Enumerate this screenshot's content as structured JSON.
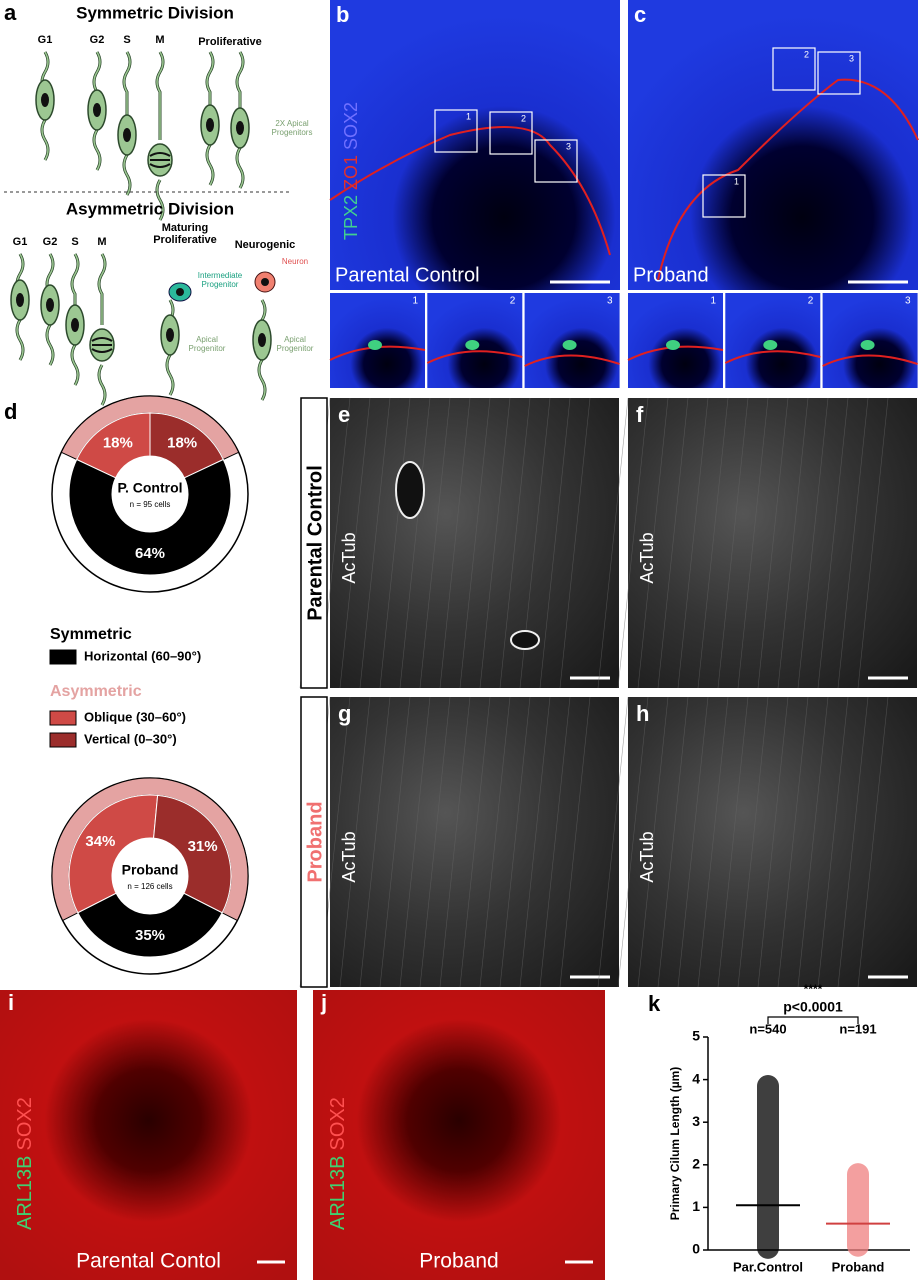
{
  "panel_a": {
    "label": "a",
    "symmetric": {
      "title": "Symmetric Division",
      "phases": [
        "G1",
        "G2",
        "S",
        "M"
      ],
      "outcome": "Proliferative",
      "result": "2X Apical Progenitors"
    },
    "asymmetric": {
      "title": "Asymmetric Division",
      "phases": [
        "G1",
        "G2",
        "S",
        "M"
      ],
      "outcomes": [
        "Maturing Proliferative",
        "Neurogenic"
      ],
      "cell_labels": [
        "Intermediate Progenitor",
        "Apical Progenitor",
        "Neuron",
        "Apical Progenitor"
      ]
    }
  },
  "panel_b": {
    "label": "b",
    "stains": [
      "TPX2",
      "ZO1",
      "SOX2"
    ],
    "caption": "Parental Control",
    "boxes": [
      "1",
      "2",
      "3"
    ],
    "insets": [
      "1",
      "2",
      "3"
    ]
  },
  "panel_c": {
    "label": "c",
    "caption": "Proband",
    "boxes": [
      "1",
      "2",
      "3"
    ],
    "insets": [
      "1",
      "2",
      "3"
    ]
  },
  "panel_d": {
    "label": "d",
    "groups": [
      "Symmetric",
      "Asymmetric"
    ]
  },
  "panel_e": {
    "label": "e",
    "stain": "AcTub"
  },
  "panel_f": {
    "label": "f",
    "stain": "AcTub"
  },
  "panel_g": {
    "label": "g",
    "stain": "AcTub"
  },
  "panel_h": {
    "label": "h",
    "stain": "AcTub"
  },
  "row_labels": [
    "Parental Control",
    "Proband"
  ],
  "panel_i": {
    "label": "i",
    "stains": [
      "ARL13B",
      "SOX2"
    ],
    "caption": "Parental Contol"
  },
  "panel_j": {
    "label": "j",
    "stains": [
      "ARL13B",
      "SOX2"
    ],
    "caption": "Proband"
  },
  "panel_k": {
    "label": "k"
  },
  "chart_data": [
    {
      "type": "pie",
      "title": "P. Control",
      "subtitle": "n = 95 cells",
      "categories": [
        "Oblique (30–60°)",
        "Vertical (0–30°)",
        "Horizontal (60–90°)"
      ],
      "values": [
        18,
        18,
        64
      ],
      "value_labels": [
        "18%",
        "18%",
        "64%"
      ],
      "colors": [
        "#cf4a46",
        "#9b2d2b",
        "#000000"
      ]
    },
    {
      "type": "pie",
      "title": "Proband",
      "subtitle": "n = 126 cells",
      "categories": [
        "Oblique (30–60°)",
        "Vertical (0–30°)",
        "Horizontal (60–90°)"
      ],
      "values": [
        34,
        31,
        35
      ],
      "value_labels": [
        "34%",
        "31%",
        "35%"
      ],
      "colors": [
        "#cf4a46",
        "#9b2d2b",
        "#000000"
      ]
    },
    {
      "type": "dot",
      "ylabel": "Primary Cilum Length (µm)",
      "categories": [
        "Par.Control",
        "Proband"
      ],
      "n_labels": [
        "n=540",
        "n=191"
      ],
      "means": [
        1.05,
        0.62
      ],
      "max": [
        3.85,
        1.78
      ],
      "min": [
        0.05,
        0.1
      ],
      "colors": [
        "#000000",
        "#f08080"
      ],
      "ylim": [
        0,
        5
      ],
      "yticks": [
        0,
        1,
        2,
        3,
        4,
        5
      ],
      "annotation": "p<0.0001",
      "significance": "****"
    }
  ]
}
